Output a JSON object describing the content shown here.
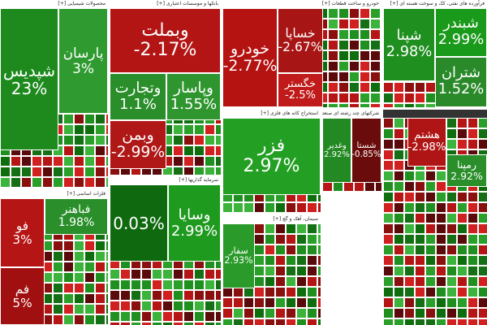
{
  "chart_data": {
    "type": "treemap",
    "sectors": [
      {
        "title": "محصولات شیمیایی [+]",
        "tiles": [
          {
            "name": "شپدیس",
            "change": "23%",
            "color": "#1e8a1e"
          },
          {
            "name": "پارسان",
            "change": "3%",
            "color": "#2f9a2f"
          }
        ]
      },
      {
        "title": "بانکها و موسسات اعتباری [+]",
        "tiles": [
          {
            "name": "وبملت",
            "change": "-2.17%",
            "color": "#b31515"
          },
          {
            "name": "وتجارت",
            "change": "1.1%",
            "color": "#2a8f2a"
          },
          {
            "name": "وپاسار",
            "change": "1.55%",
            "color": "#2f962f"
          },
          {
            "name": "وبمن",
            "change": "-2.99%",
            "color": "#b01818"
          }
        ]
      },
      {
        "title": "خودرو و ساخت قطعات [+]",
        "tiles": [
          {
            "name": "خودرو",
            "change": "-2.77%",
            "color": "#b51212"
          },
          {
            "name": "خساپا",
            "change": "-2.67%",
            "color": "#a81515"
          },
          {
            "name": "خگستر",
            "change": "-2.5%",
            "color": "#c01a1a"
          }
        ]
      },
      {
        "title": "فرآورده های نفتی، کک و سوخت هسته ای [+]",
        "tiles": [
          {
            "name": "شپنا",
            "change": "2.98%",
            "color": "#1f8f1f"
          },
          {
            "name": "شبندر",
            "change": "2.99%",
            "color": "#1a9a1a"
          },
          {
            "name": "شتران",
            "change": "1.52%",
            "color": "#2a8a2a"
          }
        ]
      },
      {
        "title": "استخراج کانه های فلزی [+]",
        "tiles": [
          {
            "name": "فزر",
            "change": "2.97%",
            "color": "#23a023"
          }
        ]
      },
      {
        "title": "شرکتهای چند رشته ای صنعتی [+]",
        "tiles": [
          {
            "name": "وغدیر",
            "change": "2.92%",
            "color": "#238a23"
          },
          {
            "name": "شستا",
            "change": "-0.85%",
            "color": "#6a0c0c"
          }
        ]
      },
      {
        "title": "سرمایه گذاریها [+]",
        "tiles": [
          {
            "change": "0.03%",
            "color": "#0f6a0f"
          },
          {
            "name": "وسایا",
            "change": "2.99%",
            "color": "#1e9a1e"
          }
        ]
      },
      {
        "title": "فلزات اساسی [+]",
        "tiles": [
          {
            "name": "فو",
            "change": "3%",
            "color": "#b51515"
          },
          {
            "name": "فم",
            "change": "5%",
            "color": "#a01010"
          },
          {
            "name": "فباهنر",
            "change": "1.98%",
            "color": "#2a8f2a"
          }
        ]
      },
      {
        "title": "سیمان، آهک و گچ [+]",
        "tiles": [
          {
            "name": "سفار",
            "change": "2.93%",
            "color": "#2a9a2a"
          }
        ]
      },
      {
        "tiles": [
          {
            "name": "هشتم",
            "change": "-2.98%",
            "color": "#b01515"
          },
          {
            "name": "رمپنا",
            "change": "2.92%",
            "color": "#2a8f2a"
          }
        ]
      }
    ]
  }
}
